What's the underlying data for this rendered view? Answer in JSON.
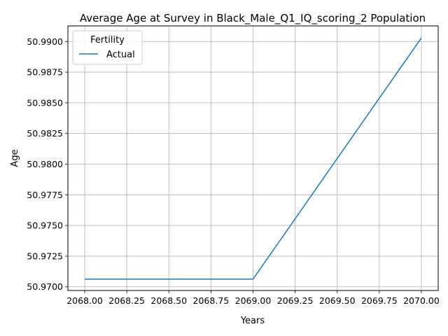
{
  "chart_data": {
    "type": "line",
    "title": "Average Age at Survey in Black_Male_Q1_IQ_scoring_2 Population",
    "xlabel": "Years",
    "ylabel": "Age",
    "xlim": [
      2067.9,
      2070.1
    ],
    "ylim": [
      50.9697,
      50.99127
    ],
    "x_ticks": [
      2068.0,
      2068.25,
      2068.5,
      2068.75,
      2069.0,
      2069.25,
      2069.5,
      2069.75,
      2070.0
    ],
    "x_tick_labels": [
      "2068.00",
      "2068.25",
      "2068.50",
      "2068.75",
      "2069.00",
      "2069.25",
      "2069.50",
      "2069.75",
      "2070.00"
    ],
    "y_ticks": [
      50.97,
      50.9725,
      50.975,
      50.9775,
      50.98,
      50.9825,
      50.985,
      50.9875,
      50.99
    ],
    "y_tick_labels": [
      "50.9700",
      "50.9725",
      "50.9750",
      "50.9775",
      "50.9800",
      "50.9825",
      "50.9850",
      "50.9875",
      "50.9900"
    ],
    "grid": true,
    "legend": {
      "title": "Fertility",
      "placement": "upper-left"
    },
    "series": [
      {
        "name": "Actual",
        "color": "#1f77b4",
        "x": [
          2068.0,
          2069.0,
          2070.0
        ],
        "y": [
          50.97063,
          50.97063,
          50.99029
        ]
      }
    ]
  }
}
